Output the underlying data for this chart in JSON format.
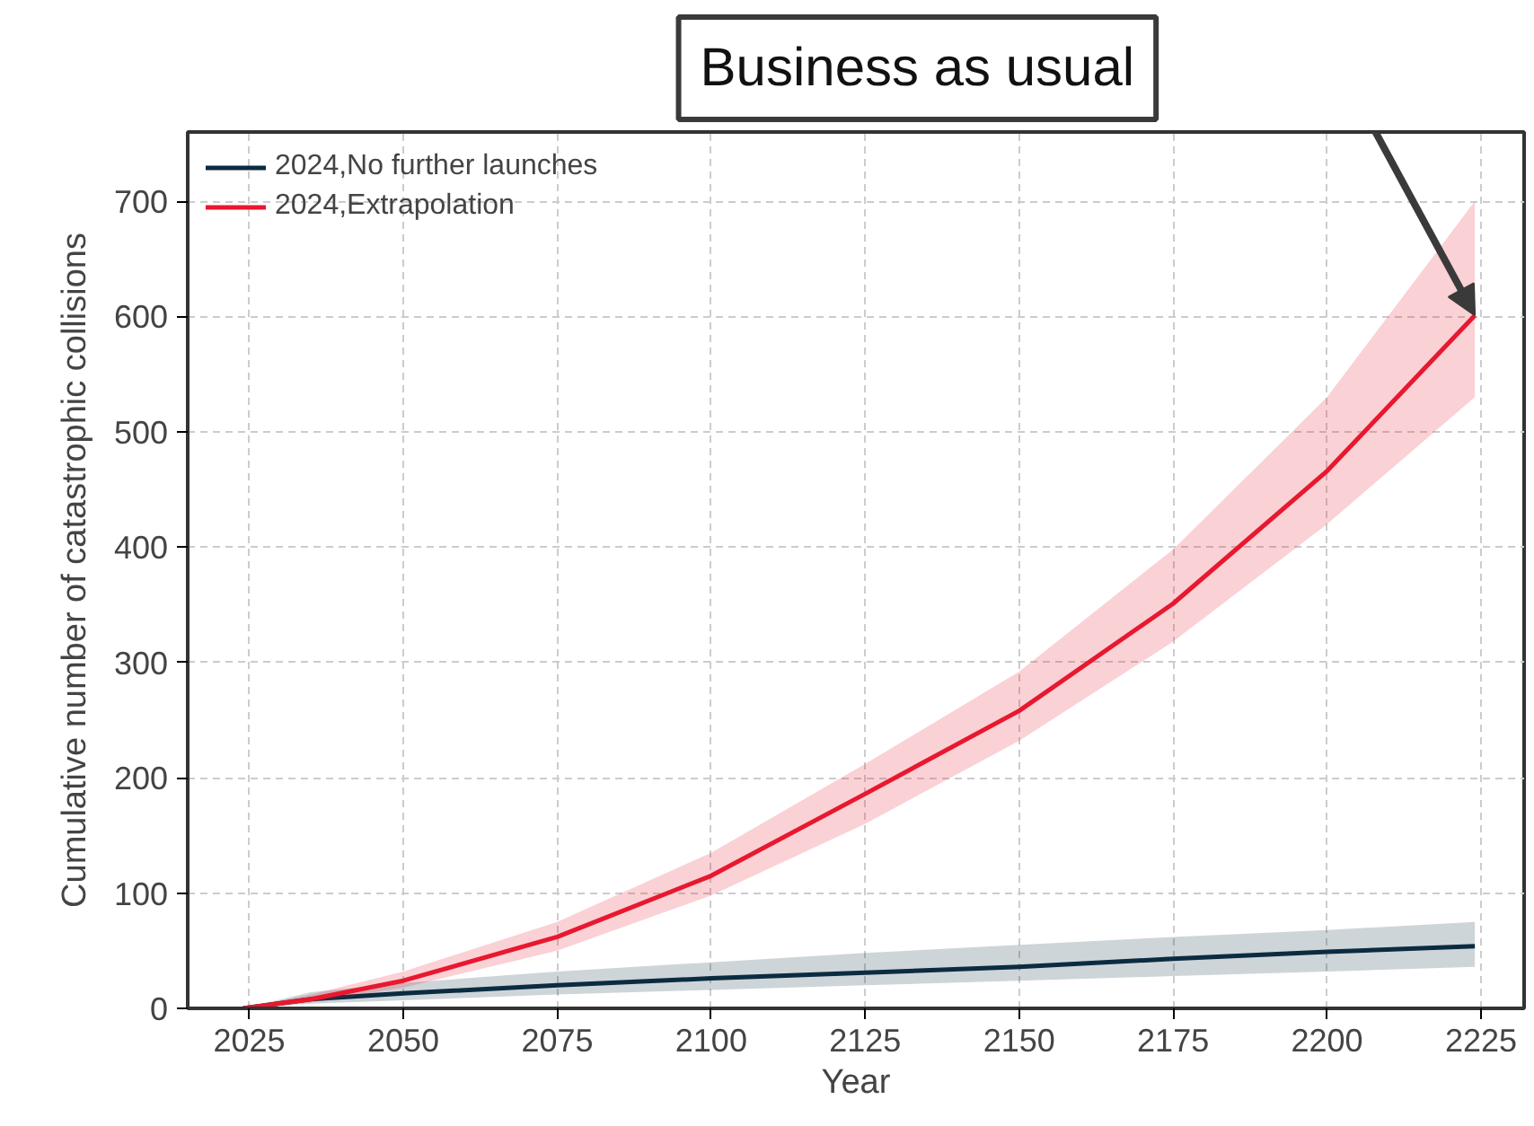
{
  "chart_data": {
    "type": "line",
    "xlabel": "Year",
    "ylabel": "Cumulative number of catastrophic collisions",
    "xlim": [
      2015,
      2232
    ],
    "ylim": [
      0,
      760
    ],
    "xticks": [
      2025,
      2050,
      2075,
      2100,
      2125,
      2150,
      2175,
      2200,
      2225
    ],
    "yticks": [
      0,
      100,
      200,
      300,
      400,
      500,
      600,
      700
    ],
    "grid": true,
    "legend": "top left",
    "series": [
      {
        "name": "2024,No further launches",
        "color": "#0b2b40",
        "x": [
          2024,
          2035,
          2050,
          2075,
          2100,
          2125,
          2150,
          2175,
          2200,
          2224
        ],
        "values": [
          0,
          8,
          13,
          20,
          26,
          31,
          36,
          43,
          49,
          54
        ],
        "lower": [
          0,
          4,
          7,
          12,
          16,
          20,
          24,
          28,
          32,
          36
        ],
        "upper": [
          0,
          14,
          22,
          32,
          40,
          48,
          55,
          62,
          68,
          75
        ]
      },
      {
        "name": "2024,Extrapolation",
        "color": "#e8182f",
        "x": [
          2024,
          2035,
          2050,
          2075,
          2100,
          2125,
          2150,
          2175,
          2200,
          2224
        ],
        "values": [
          0,
          8,
          24,
          62,
          115,
          186,
          258,
          351,
          466,
          601
        ],
        "lower": [
          0,
          5,
          18,
          50,
          98,
          160,
          232,
          318,
          420,
          530
        ],
        "upper": [
          0,
          12,
          32,
          75,
          135,
          212,
          292,
          398,
          530,
          700
        ]
      }
    ],
    "annotations": [
      "Business as usual"
    ]
  }
}
